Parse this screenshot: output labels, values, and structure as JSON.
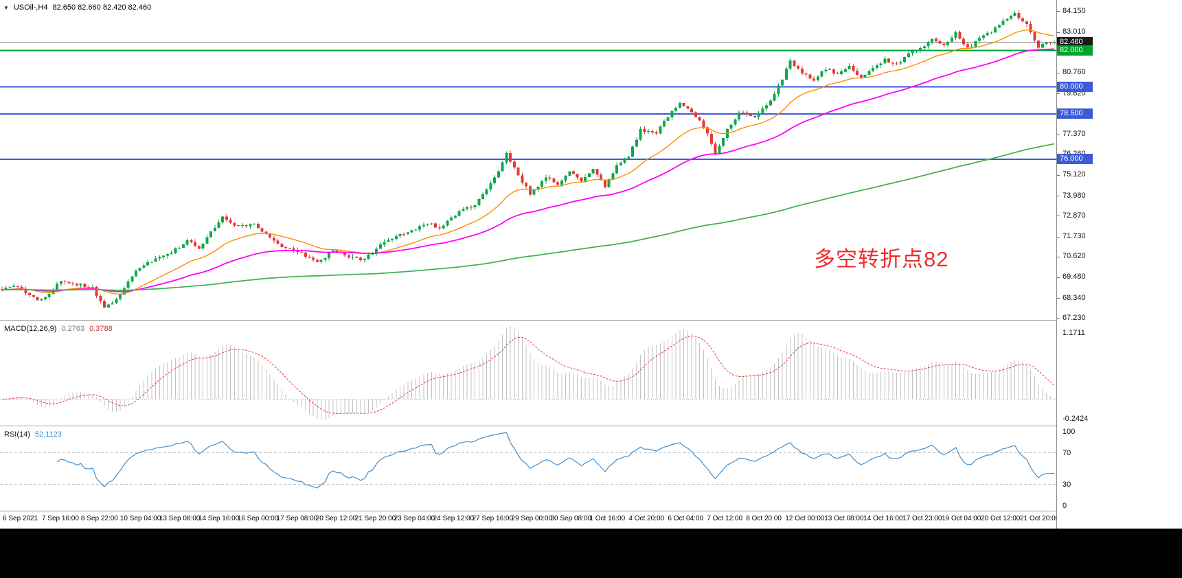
{
  "header": {
    "collapse_icon": "▼",
    "title": "USOil-,H4",
    "ohlc": "82.650 82.660 82.420 82.460"
  },
  "annotation": {
    "text": "多空转折点82",
    "color": "#f12b2b"
  },
  "chart_data": {
    "type": "candlestick",
    "symbol": "USOil-",
    "timeframe": "H4",
    "current_ohlc": {
      "open": "82.650",
      "high": "82.660",
      "low": "82.420",
      "close": "82.460"
    },
    "num_candles": 268,
    "seed": 97,
    "noise": 0.085,
    "wick": 0.16,
    "last_close": 82.46,
    "price_scale": {
      "min": 67.15,
      "max": 84.79
    },
    "price_anchors": [
      [
        0,
        68.85
      ],
      [
        5,
        69.0
      ],
      [
        10,
        68.2
      ],
      [
        12,
        68.4
      ],
      [
        16,
        69.3
      ],
      [
        20,
        69.15
      ],
      [
        24,
        68.9
      ],
      [
        27,
        67.8
      ],
      [
        30,
        68.3
      ],
      [
        34,
        69.6
      ],
      [
        38,
        70.3
      ],
      [
        44,
        70.9
      ],
      [
        48,
        71.5
      ],
      [
        51,
        71.1
      ],
      [
        57,
        72.8
      ],
      [
        61,
        72.3
      ],
      [
        65,
        72.45
      ],
      [
        71,
        71.3
      ],
      [
        78,
        70.7
      ],
      [
        81,
        70.3
      ],
      [
        85,
        70.95
      ],
      [
        90,
        70.6
      ],
      [
        93,
        70.45
      ],
      [
        97,
        71.3
      ],
      [
        101,
        71.7
      ],
      [
        105,
        72.1
      ],
      [
        109,
        72.5
      ],
      [
        112,
        72.2
      ],
      [
        117,
        73.1
      ],
      [
        121,
        73.5
      ],
      [
        124,
        74.4
      ],
      [
        127,
        75.3
      ],
      [
        129,
        76.3
      ],
      [
        132,
        75.1
      ],
      [
        135,
        74.1
      ],
      [
        139,
        75.0
      ],
      [
        142,
        74.6
      ],
      [
        145,
        75.3
      ],
      [
        148,
        74.8
      ],
      [
        151,
        75.4
      ],
      [
        154,
        74.5
      ],
      [
        157,
        75.6
      ],
      [
        160,
        76.2
      ],
      [
        163,
        77.6
      ],
      [
        167,
        77.4
      ],
      [
        170,
        78.4
      ],
      [
        173,
        79.1
      ],
      [
        176,
        78.6
      ],
      [
        179,
        77.8
      ],
      [
        182,
        76.4
      ],
      [
        185,
        77.6
      ],
      [
        188,
        78.6
      ],
      [
        192,
        78.3
      ],
      [
        195,
        79.0
      ],
      [
        198,
        80.0
      ],
      [
        201,
        81.4
      ],
      [
        204,
        80.8
      ],
      [
        207,
        80.4
      ],
      [
        210,
        81.0
      ],
      [
        213,
        80.7
      ],
      [
        216,
        81.2
      ],
      [
        219,
        80.5
      ],
      [
        222,
        81.1
      ],
      [
        225,
        81.5
      ],
      [
        228,
        81.2
      ],
      [
        231,
        81.8
      ],
      [
        234,
        82.1
      ],
      [
        237,
        82.6
      ],
      [
        240,
        82.3
      ],
      [
        243,
        83.0
      ],
      [
        246,
        82.1
      ],
      [
        249,
        82.7
      ],
      [
        252,
        83.0
      ],
      [
        255,
        83.7
      ],
      [
        258,
        84.0
      ],
      [
        261,
        83.4
      ],
      [
        264,
        82.2
      ],
      [
        267,
        82.46
      ]
    ],
    "colors": {
      "up": "#0fa84e",
      "down": "#e53935"
    },
    "moving_averages": [
      {
        "name": "ma-fast",
        "period": 21,
        "color": "#ff8c00",
        "width": 1.4
      },
      {
        "name": "ma-mid",
        "period": 55,
        "color": "#ff00ff",
        "width": 1.8
      },
      {
        "name": "ma-slow",
        "period": 260,
        "color": "#45b34f",
        "width": 1.8
      }
    ],
    "levels": [
      {
        "price": 82.46,
        "color": "#8f8f8f",
        "line_width": 1,
        "badge": "82.460",
        "badge_bg": "#1b1b1b"
      },
      {
        "price": 82.0,
        "color": "#00a32e",
        "line_width": 2,
        "badge": "82.000",
        "badge_bg": "#00a32e"
      },
      {
        "price": 80.0,
        "color": "#3c5bd7",
        "line_width": 2,
        "badge": "80.000",
        "badge_bg": "#3c5bd7"
      },
      {
        "price": 78.5,
        "color": "#3c5bd7",
        "line_width": 2,
        "badge": "78.500",
        "badge_bg": "#3c5bd7"
      },
      {
        "price": 76.0,
        "color": "#3c5bd7",
        "line_width": 2,
        "badge": "76.000",
        "badge_bg": "#3c5bd7"
      }
    ],
    "price_axis_ticks": [
      "84.150",
      "83.010",
      "80.760",
      "79.620",
      "77.370",
      "76.260",
      "75.120",
      "73.980",
      "72.870",
      "71.730",
      "70.620",
      "69.480",
      "68.340",
      "67.230"
    ],
    "macd": {
      "label": "MACD(12,26,9)",
      "main_value": "0.2763",
      "signal_value": "0.3788",
      "fast": 12,
      "slow": 26,
      "signal_period": 9,
      "axis_top": "1.1711",
      "axis_bottom": "-0.2424",
      "hist_color": "#c2c2c2",
      "signal_color": "#e23b3b"
    },
    "rsi": {
      "label": "RSI(14)",
      "value": "52.1123",
      "period": 14,
      "levels": [
        70,
        30
      ],
      "axis_values": [
        100,
        70,
        30,
        0
      ],
      "color": "#3e8ed0"
    },
    "time_labels": [
      "6 Sep 2021",
      "7 Sep 16:00",
      "8 Sep 22:00",
      "10 Sep 04:00",
      "13 Sep 08:00",
      "14 Sep 16:00",
      "16 Sep 00:00",
      "17 Sep 08:00",
      "20 Sep 12:00",
      "21 Sep 20:00",
      "23 Sep 04:00",
      "24 Sep 12:00",
      "27 Sep 16:00",
      "29 Sep 00:00",
      "30 Sep 08:00",
      "1 Oct 16:00",
      "4 Oct 20:00",
      "6 Oct 04:00",
      "7 Oct 12:00",
      "8 Oct 20:00",
      "12 Oct 00:00",
      "13 Oct 08:00",
      "14 Oct 16:00",
      "17 Oct 23:00",
      "19 Oct 04:00",
      "20 Oct 12:00",
      "21 Oct 20:00"
    ]
  }
}
